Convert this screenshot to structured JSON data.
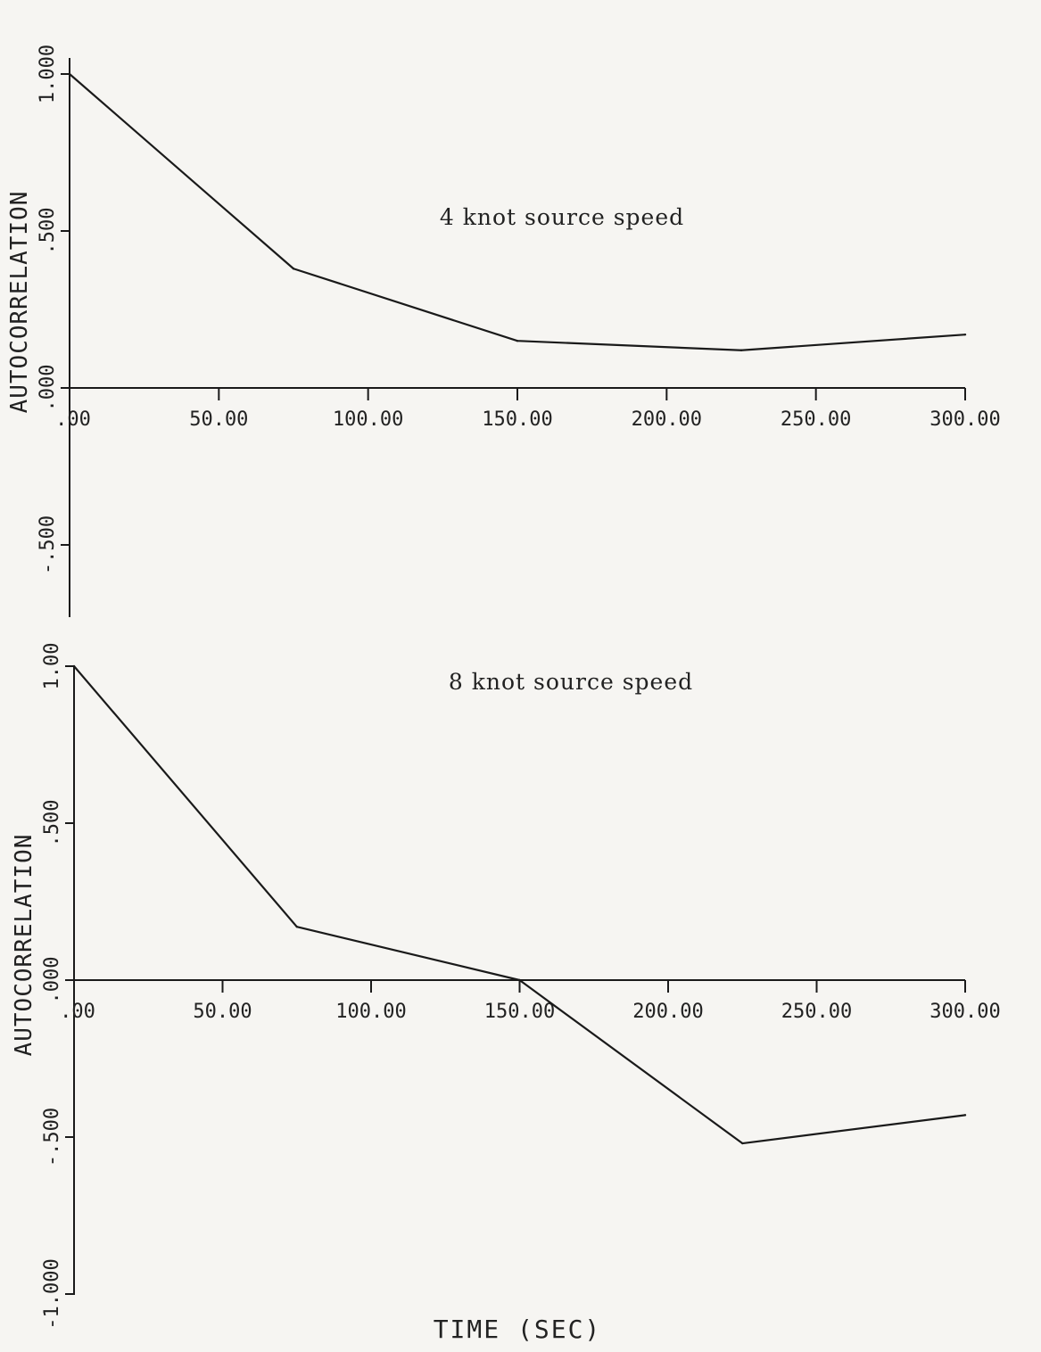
{
  "chart_data": [
    {
      "type": "line",
      "annotation": "4 knot source speed",
      "ylabel": "AUTOCORRELATION",
      "xlim": [
        0,
        300
      ],
      "ylim": [
        -0.75,
        1.0
      ],
      "x_ticks": [
        0,
        50,
        100,
        150,
        200,
        250,
        300
      ],
      "x_tick_labels": [
        ".00",
        "50.00",
        "100.00",
        "150.00",
        "200.00",
        "250.00",
        "300.00"
      ],
      "y_ticks": [
        1.0,
        0.5,
        0.0,
        -0.5
      ],
      "y_tick_labels": [
        "1.000",
        ".500",
        ".000",
        "-.500"
      ],
      "series": [
        {
          "x": [
            0,
            75,
            150,
            225,
            300
          ],
          "y": [
            1.0,
            0.38,
            0.15,
            0.12,
            0.17
          ]
        }
      ]
    },
    {
      "type": "line",
      "annotation": "8 knot source speed",
      "ylabel": "AUTOCORRELATION",
      "xlabel": "TIME (SEC)",
      "xlim": [
        0,
        300
      ],
      "ylim": [
        -1.0,
        1.0
      ],
      "x_ticks": [
        0,
        50,
        100,
        150,
        200,
        250,
        300
      ],
      "x_tick_labels": [
        ".00",
        "50.00",
        "100.00",
        "150.00",
        "200.00",
        "250.00",
        "300.00"
      ],
      "y_ticks": [
        1.0,
        0.5,
        0.0,
        -0.5,
        -1.0
      ],
      "y_tick_labels": [
        "1.00",
        ".500",
        ".000",
        "-.500",
        "-1.000"
      ],
      "series": [
        {
          "x": [
            0,
            75,
            150,
            225,
            300
          ],
          "y": [
            1.0,
            0.17,
            0.0,
            -0.52,
            -0.43
          ]
        }
      ]
    }
  ]
}
